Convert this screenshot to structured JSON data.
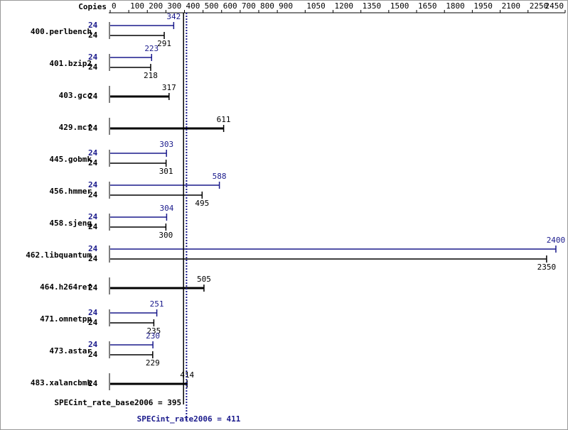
{
  "chart_data": {
    "type": "spec_bar",
    "copies_header": "Copies",
    "categories": [
      "400.perlbench",
      "401.bzip2",
      "403.gcc",
      "429.mcf",
      "445.gobmk",
      "456.hmmer",
      "458.sjeng",
      "462.libquantum",
      "464.h264ref",
      "471.omnetpp",
      "473.astar",
      "483.xalancbmk"
    ],
    "series": [
      {
        "color": "#1a1a8c",
        "copies": [
          24,
          24,
          null,
          null,
          24,
          24,
          24,
          24,
          null,
          24,
          24,
          null
        ],
        "values": [
          342,
          223,
          null,
          null,
          303,
          588,
          304,
          2400,
          null,
          251,
          230,
          null
        ]
      },
      {
        "color": "#000000",
        "copies": [
          24,
          24,
          24,
          24,
          24,
          24,
          24,
          24,
          24,
          24,
          24,
          24
        ],
        "values": [
          291,
          218,
          317,
          611,
          301,
          495,
          300,
          2350,
          505,
          235,
          229,
          414
        ]
      }
    ],
    "xlim": [
      0,
      2450
    ],
    "xticks": [
      0,
      100,
      200,
      300,
      400,
      500,
      600,
      700,
      800,
      900,
      1050,
      1200,
      1350,
      1500,
      1650,
      1800,
      1950,
      2100,
      2250,
      2450
    ],
    "base_metric": {
      "label": "SPECint_rate_base2006 = 395",
      "value": 395,
      "color": "#000000"
    },
    "peak_metric": {
      "label": "SPECint_rate2006 = 411",
      "value": 411,
      "color": "#1a1a8c"
    }
  }
}
